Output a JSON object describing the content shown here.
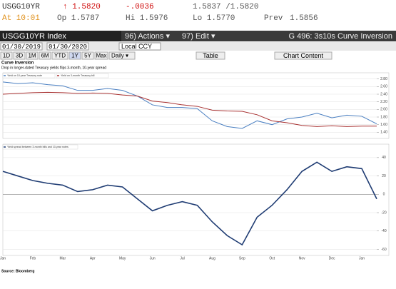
{
  "header": {
    "ticker": "USGG10YR",
    "last": "↑ 1.5820",
    "change": "-.0036",
    "bid_ask": "1.5837 /1.5820",
    "time": "At 10:01",
    "open": "Op 1.5787",
    "high": "Hi 1.5976",
    "low": "Lo 1.5770",
    "prev_label": "Prev",
    "prev": "1.5856"
  },
  "toolbar": {
    "security": "USGG10YR Index",
    "actions": "96) Actions ▾",
    "edit": "97) Edit ▾",
    "chart_name": "G 496: 3s10s Curve Inversion",
    "start_date": "01/30/2019",
    "end_date": "01/30/2020",
    "currency": "Local CCY",
    "periods": [
      "1D",
      "3D",
      "1M",
      "6M",
      "YTD",
      "1Y",
      "5Y",
      "Max"
    ],
    "frequency": "Daily ▾",
    "table": "Table",
    "chart_content": "Chart Content"
  },
  "chart_data": [
    {
      "type": "line",
      "title": "Curve Inversion",
      "subtitle": "Drop in longer-dated Treasury yields flips 3-month, 10-year spread",
      "categories": [
        "Jan",
        null,
        "Feb",
        null,
        "Mar",
        null,
        "Apr",
        null,
        "May",
        null,
        "Jun",
        null,
        "Jul",
        null,
        "Aug",
        null,
        "Sep",
        null,
        "Oct",
        null,
        "Nov",
        null,
        "Dec",
        null,
        "Jan",
        null
      ],
      "series": [
        {
          "name": "Yield on 10-year Treasury note",
          "color": "#4a7fc1",
          "values": [
            2.72,
            2.68,
            2.7,
            2.65,
            2.62,
            2.5,
            2.5,
            2.55,
            2.5,
            2.35,
            2.12,
            2.05,
            2.05,
            2.02,
            1.7,
            1.55,
            1.5,
            1.7,
            1.6,
            1.75,
            1.8,
            1.9,
            1.78,
            1.85,
            1.82,
            1.62
          ]
        },
        {
          "name": "Yield on 3-month Treasury bill",
          "color": "#a83232",
          "values": [
            2.4,
            2.42,
            2.44,
            2.45,
            2.44,
            2.42,
            2.43,
            2.42,
            2.38,
            2.35,
            2.22,
            2.18,
            2.12,
            2.08,
            1.98,
            1.96,
            1.95,
            1.86,
            1.7,
            1.65,
            1.58,
            1.55,
            1.57,
            1.55,
            1.56,
            1.56
          ]
        }
      ],
      "ylim": [
        1.35,
        2.85
      ],
      "yticks": [
        {
          "value": 1.4,
          "label": "1.40"
        },
        {
          "value": 1.6,
          "label": "1.60"
        },
        {
          "value": 1.8,
          "label": "1.80"
        },
        {
          "value": 2,
          "label": "2.00"
        },
        {
          "value": 2.2,
          "label": "2.20"
        },
        {
          "value": 2.4,
          "label": "2.40"
        },
        {
          "value": 2.6,
          "label": "2.60"
        },
        {
          "value": 2.8,
          "label": "2.80"
        }
      ],
      "grid": true
    },
    {
      "type": "line",
      "title": "Yield spread between 3-month bills and 10-year notes",
      "source": "Source: Bloomberg",
      "categories": [
        "Jan",
        null,
        "Feb",
        null,
        "Mar",
        null,
        "Apr",
        null,
        "May",
        null,
        "Jun",
        null,
        "Jul",
        null,
        "Aug",
        null,
        "Sep",
        null,
        "Oct",
        null,
        "Nov",
        null,
        "Dec",
        null,
        "Jan",
        null
      ],
      "series": [
        {
          "name": "Yield spread between 3-month bills and 10-year notes",
          "color": "#1f3c73",
          "values": [
            25,
            20,
            15,
            12,
            10,
            3,
            5,
            10,
            8,
            -5,
            -18,
            -12,
            -8,
            -12,
            -30,
            -45,
            -55,
            -25,
            -12,
            5,
            25,
            35,
            25,
            30,
            28,
            -5
          ]
        }
      ],
      "ylim": [
        -62,
        50
      ],
      "yticks": [
        -60,
        -40,
        -20,
        0,
        20,
        40
      ],
      "grid": true
    }
  ]
}
